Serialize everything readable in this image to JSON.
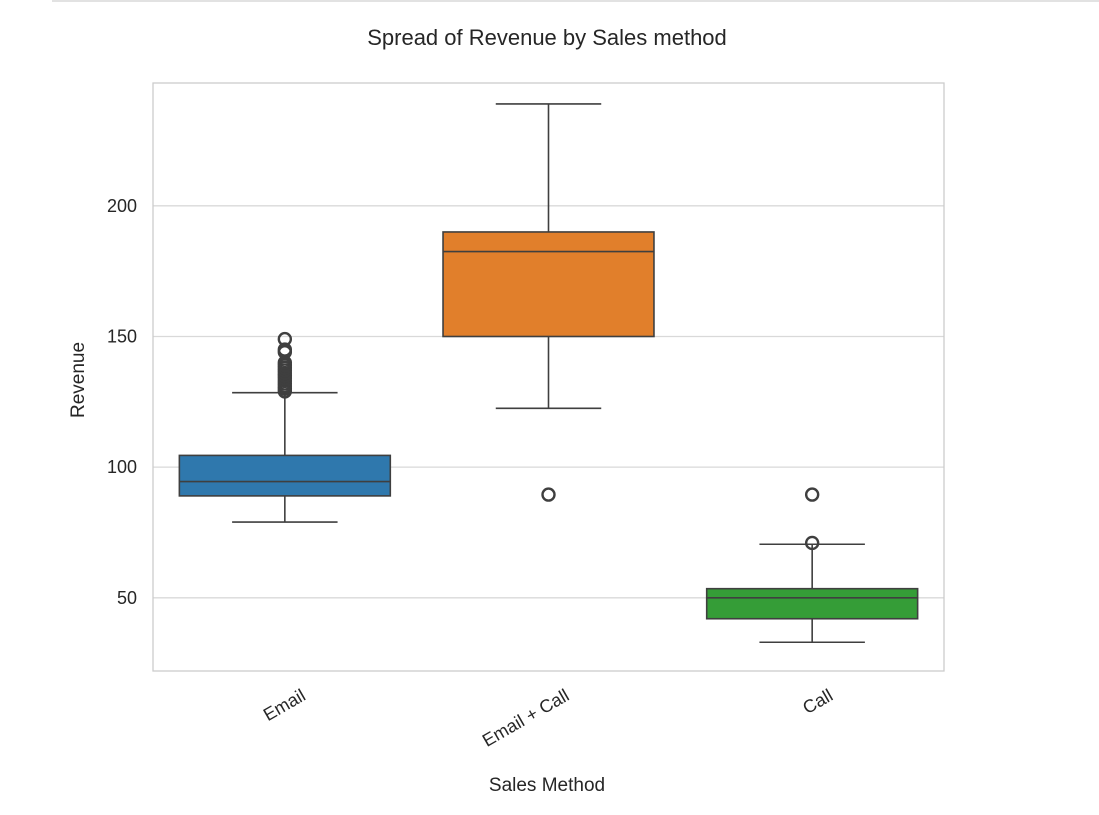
{
  "chart_data": {
    "type": "boxplot",
    "title": "Spread of Revenue by Sales method",
    "xlabel": "Sales Method",
    "ylabel": "Revenue",
    "ylim": [
      22,
      247
    ],
    "yticks": [
      50,
      100,
      150,
      200
    ],
    "grid": true,
    "categories": [
      "Email",
      "Email + Call",
      "Call"
    ],
    "boxes": [
      {
        "category": "Email",
        "color": "#2f78ad",
        "whisker_low": 79,
        "q1": 89,
        "median": 94.5,
        "q3": 104.5,
        "whisker_high": 128.5,
        "outliers": [
          129,
          130,
          131,
          132,
          133,
          134,
          135,
          136,
          137,
          138,
          139,
          140,
          144,
          145,
          149
        ]
      },
      {
        "category": "Email + Call",
        "color": "#e17f2b",
        "whisker_low": 122.5,
        "q1": 150,
        "median": 182.5,
        "q3": 190,
        "whisker_high": 239,
        "outliers": [
          89.5
        ]
      },
      {
        "category": "Call",
        "color": "#359d37",
        "whisker_low": 33,
        "q1": 42,
        "median": 50,
        "q3": 53.5,
        "whisker_high": 70.5,
        "outliers": [
          71,
          89.5
        ]
      }
    ]
  }
}
